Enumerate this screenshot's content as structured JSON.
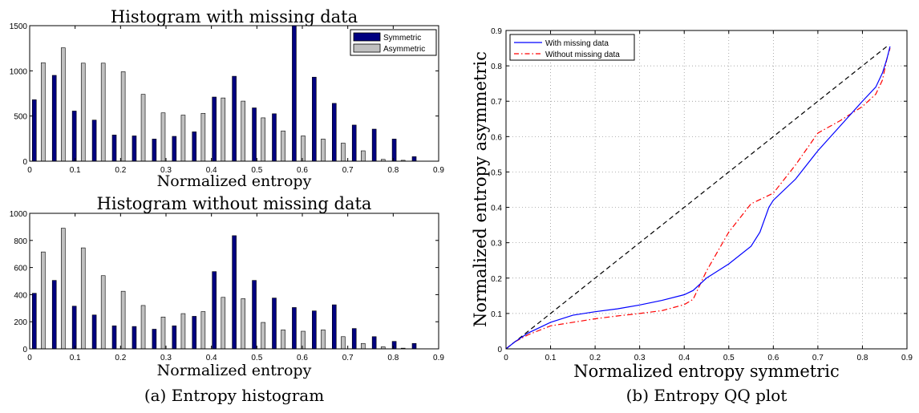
{
  "captions": {
    "a": "(a) Entropy histogram",
    "b": "(b) Entropy QQ plot"
  },
  "colors": {
    "symmetric": "#000080",
    "asymmetric": "#c0c0c0",
    "with_missing": "#0000ff",
    "without_missing": "#ff0000",
    "diagonal": "#000000"
  },
  "chart_data": [
    {
      "type": "bar",
      "title": "Histogram with missing data",
      "xlabel": "Normalized entropy",
      "ylabel": "",
      "xlim": [
        0,
        0.9
      ],
      "ylim": [
        0,
        1500
      ],
      "xticks": [
        0,
        0.1,
        0.2,
        0.3,
        0.4,
        0.5,
        0.6,
        0.7,
        0.8,
        0.9
      ],
      "xtick_labels": [
        "0",
        "0.1",
        "0.2",
        "0.3",
        "0.4",
        "0.5",
        "0.6",
        "0.7",
        "0.8",
        "0.9"
      ],
      "yticks": [
        0,
        500,
        1000,
        1500
      ],
      "ytick_labels": [
        "0",
        "500",
        "1000",
        "1500"
      ],
      "legend_position": "top-right",
      "grid": false,
      "x": [
        0.02,
        0.064,
        0.108,
        0.152,
        0.196,
        0.24,
        0.284,
        0.328,
        0.372,
        0.416,
        0.46,
        0.504,
        0.548,
        0.592,
        0.636,
        0.68,
        0.724,
        0.768,
        0.812,
        0.856
      ],
      "series": [
        {
          "name": "Symmetric",
          "values": [
            680,
            950,
            555,
            455,
            290,
            280,
            245,
            275,
            325,
            710,
            940,
            590,
            525,
            1500,
            930,
            640,
            400,
            355,
            245,
            50
          ]
        },
        {
          "name": "Asymmetric",
          "values": [
            1090,
            1255,
            1085,
            1085,
            990,
            740,
            535,
            510,
            530,
            700,
            665,
            480,
            335,
            280,
            245,
            200,
            115,
            20,
            10,
            0
          ]
        }
      ]
    },
    {
      "type": "bar",
      "title": "Histogram without missing data",
      "xlabel": "Normalized entropy",
      "ylabel": "",
      "xlim": [
        0,
        0.9
      ],
      "ylim": [
        0,
        1000
      ],
      "xticks": [
        0,
        0.1,
        0.2,
        0.3,
        0.4,
        0.5,
        0.6,
        0.7,
        0.8,
        0.9
      ],
      "xtick_labels": [
        "0",
        "0.1",
        "0.2",
        "0.3",
        "0.4",
        "0.5",
        "0.6",
        "0.7",
        "0.8",
        "0.9"
      ],
      "yticks": [
        0,
        200,
        400,
        600,
        800,
        1000
      ],
      "ytick_labels": [
        "0",
        "200",
        "400",
        "600",
        "800",
        "1000"
      ],
      "grid": false,
      "x": [
        0.02,
        0.064,
        0.108,
        0.152,
        0.196,
        0.24,
        0.284,
        0.328,
        0.372,
        0.416,
        0.46,
        0.504,
        0.548,
        0.592,
        0.636,
        0.68,
        0.724,
        0.768,
        0.812,
        0.856
      ],
      "series": [
        {
          "name": "Symmetric",
          "values": [
            410,
            505,
            315,
            250,
            170,
            165,
            145,
            170,
            240,
            570,
            835,
            505,
            375,
            305,
            280,
            325,
            150,
            90,
            55,
            40
          ]
        },
        {
          "name": "Asymmetric",
          "values": [
            715,
            890,
            745,
            540,
            425,
            320,
            235,
            260,
            275,
            380,
            370,
            195,
            140,
            130,
            140,
            90,
            40,
            15,
            5,
            0
          ]
        }
      ]
    },
    {
      "type": "line",
      "title": "",
      "xlabel": "Normalized entropy symmetric",
      "ylabel": "Normalized entropy asymmetric",
      "xlim": [
        0,
        0.9
      ],
      "ylim": [
        0,
        0.9
      ],
      "xticks": [
        0,
        0.1,
        0.2,
        0.3,
        0.4,
        0.5,
        0.6,
        0.7,
        0.8,
        0.9
      ],
      "xtick_labels": [
        "0",
        "0.1",
        "0.2",
        "0.3",
        "0.4",
        "0.5",
        "0.6",
        "0.7",
        "0.8",
        "0.9"
      ],
      "yticks": [
        0,
        0.1,
        0.2,
        0.3,
        0.4,
        0.5,
        0.6,
        0.7,
        0.8,
        0.9
      ],
      "ytick_labels": [
        "0",
        "0.1",
        "0.2",
        "0.3",
        "0.4",
        "0.5",
        "0.6",
        "0.7",
        "0.8",
        "0.9"
      ],
      "grid": true,
      "legend_position": "top-left",
      "series": [
        {
          "name": "With missing data",
          "style": "solid",
          "points": [
            [
              0,
              0
            ],
            [
              0.02,
              0.02
            ],
            [
              0.05,
              0.045
            ],
            [
              0.1,
              0.075
            ],
            [
              0.15,
              0.095
            ],
            [
              0.2,
              0.105
            ],
            [
              0.25,
              0.113
            ],
            [
              0.3,
              0.124
            ],
            [
              0.35,
              0.137
            ],
            [
              0.4,
              0.153
            ],
            [
              0.42,
              0.165
            ],
            [
              0.45,
              0.2
            ],
            [
              0.5,
              0.24
            ],
            [
              0.55,
              0.29
            ],
            [
              0.57,
              0.33
            ],
            [
              0.59,
              0.4
            ],
            [
              0.6,
              0.42
            ],
            [
              0.65,
              0.48
            ],
            [
              0.7,
              0.56
            ],
            [
              0.75,
              0.63
            ],
            [
              0.8,
              0.7
            ],
            [
              0.83,
              0.74
            ],
            [
              0.845,
              0.78
            ],
            [
              0.855,
              0.82
            ],
            [
              0.862,
              0.855
            ]
          ]
        },
        {
          "name": "Without missing data",
          "style": "dash-dot",
          "points": [
            [
              0,
              0
            ],
            [
              0.02,
              0.02
            ],
            [
              0.05,
              0.04
            ],
            [
              0.1,
              0.065
            ],
            [
              0.15,
              0.075
            ],
            [
              0.2,
              0.085
            ],
            [
              0.25,
              0.093
            ],
            [
              0.3,
              0.1
            ],
            [
              0.35,
              0.108
            ],
            [
              0.4,
              0.125
            ],
            [
              0.42,
              0.14
            ],
            [
              0.45,
              0.22
            ],
            [
              0.5,
              0.33
            ],
            [
              0.55,
              0.41
            ],
            [
              0.6,
              0.44
            ],
            [
              0.65,
              0.52
            ],
            [
              0.7,
              0.61
            ],
            [
              0.75,
              0.645
            ],
            [
              0.8,
              0.685
            ],
            [
              0.83,
              0.72
            ],
            [
              0.845,
              0.76
            ],
            [
              0.855,
              0.82
            ],
            [
              0.862,
              0.85
            ]
          ]
        },
        {
          "name": "",
          "style": "dashed",
          "points": [
            [
              0,
              0
            ],
            [
              0.86,
              0.86
            ]
          ]
        }
      ]
    }
  ]
}
